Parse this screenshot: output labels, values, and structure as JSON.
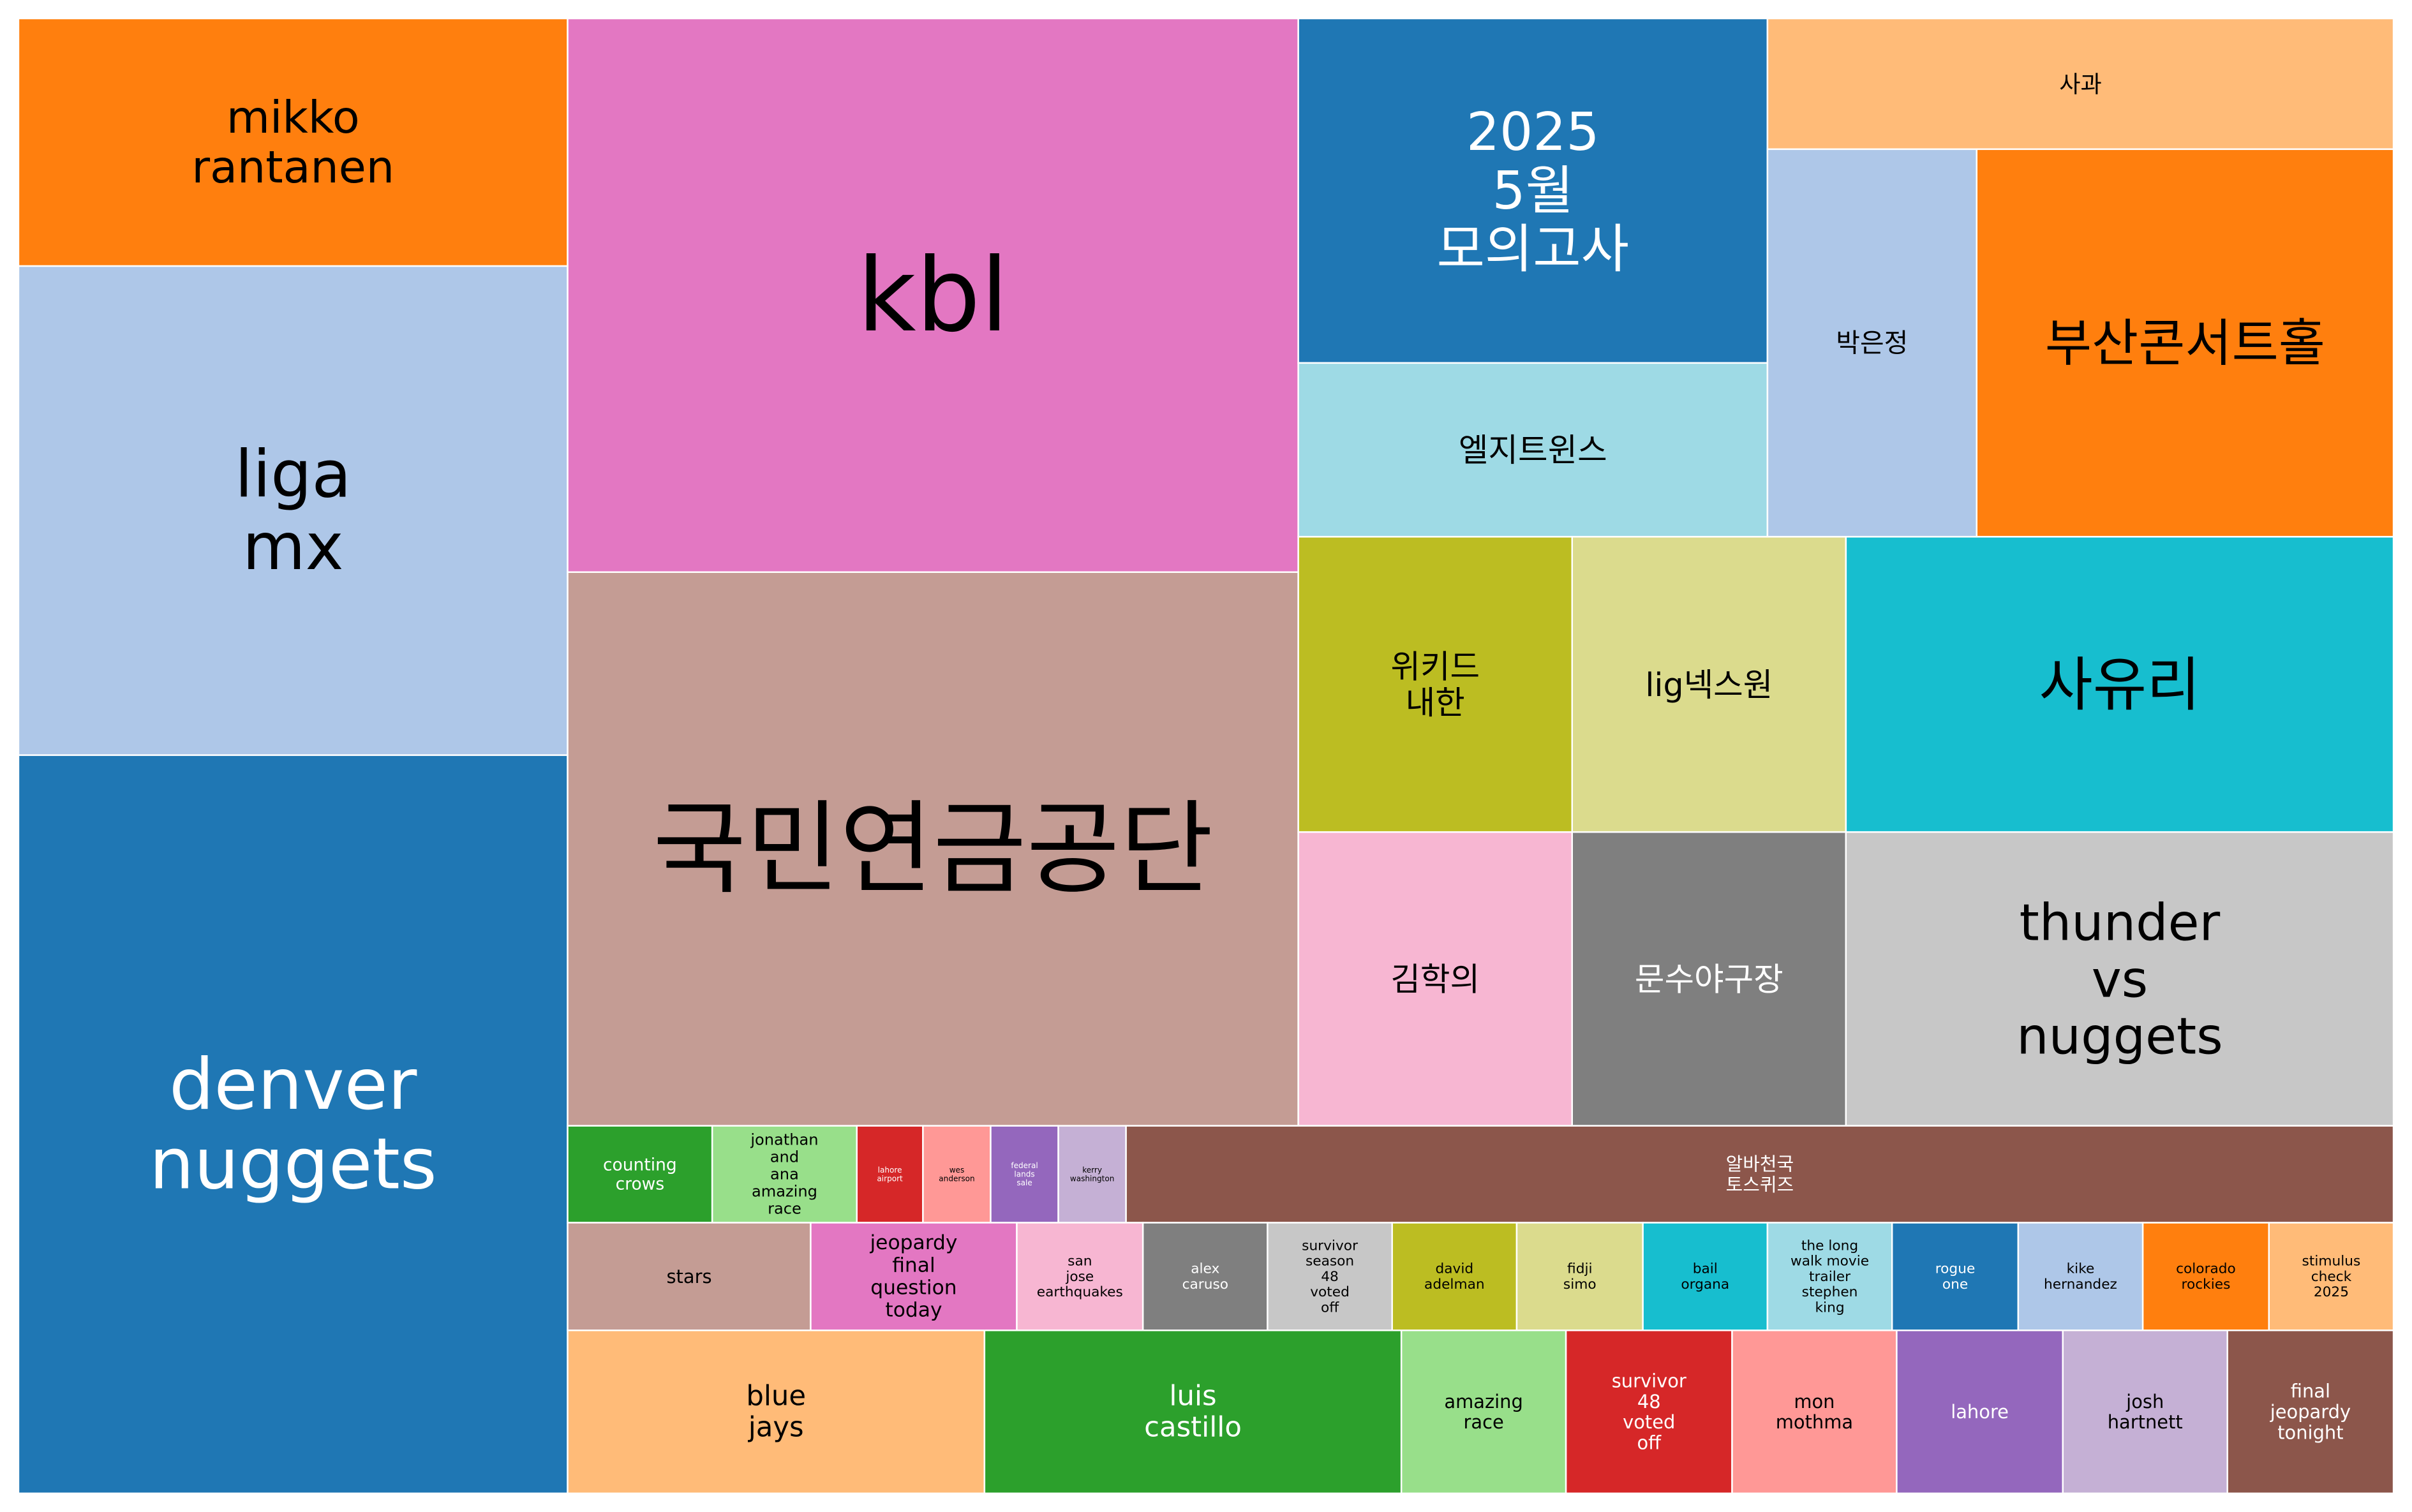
{
  "chart_data": {
    "type": "treemap",
    "title": "",
    "cells": [
      {
        "label": "mikko rantanen",
        "lines": [
          "mikko",
          "rantanen"
        ],
        "color": "#ff7f0e",
        "text_color": "#000000"
      },
      {
        "label": "liga mx",
        "lines": [
          "liga",
          "mx"
        ],
        "color": "#aec7e8",
        "text_color": "#000000"
      },
      {
        "label": "denver nuggets",
        "lines": [
          "denver",
          "nuggets"
        ],
        "color": "#1f77b4",
        "text_color": "#ffffff"
      },
      {
        "label": "kbl",
        "lines": [
          "kbl"
        ],
        "color": "#e377c2",
        "text_color": "#000000"
      },
      {
        "label": "국민연금공단",
        "lines": [
          "국민연금공단"
        ],
        "color": "#c49c94",
        "text_color": "#000000"
      },
      {
        "label": "2025 5월 모의고사",
        "lines": [
          "2025",
          "5월",
          "모의고사"
        ],
        "color": "#1f77b4",
        "text_color": "#ffffff"
      },
      {
        "label": "엘지트윈스",
        "lines": [
          "엘지트윈스"
        ],
        "color": "#9edae5",
        "text_color": "#000000"
      },
      {
        "label": "사과",
        "lines": [
          "사과"
        ],
        "color": "#ffbb78",
        "text_color": "#000000"
      },
      {
        "label": "박은정",
        "lines": [
          "박은정"
        ],
        "color": "#aec7e8",
        "text_color": "#000000"
      },
      {
        "label": "부산콘서트홀",
        "lines": [
          "부산콘서트홀"
        ],
        "color": "#ff7f0e",
        "text_color": "#000000"
      },
      {
        "label": "위키드 내한",
        "lines": [
          "위키드",
          "내한"
        ],
        "color": "#bcbd22",
        "text_color": "#000000"
      },
      {
        "label": "lig넥스원",
        "lines": [
          "lig넥스원"
        ],
        "color": "#dbdb8d",
        "text_color": "#000000"
      },
      {
        "label": "사유리",
        "lines": [
          "사유리"
        ],
        "color": "#17becf",
        "text_color": "#000000"
      },
      {
        "label": "김학의",
        "lines": [
          "김학의"
        ],
        "color": "#f7b6d2",
        "text_color": "#000000"
      },
      {
        "label": "문수야구장",
        "lines": [
          "문수야구장"
        ],
        "color": "#7f7f7f",
        "text_color": "#ffffff"
      },
      {
        "label": "thunder vs nuggets",
        "lines": [
          "thunder",
          "vs",
          "nuggets"
        ],
        "color": "#c7c7c7",
        "text_color": "#000000"
      },
      {
        "label": "counting crows",
        "lines": [
          "counting",
          "crows"
        ],
        "color": "#2ca02c",
        "text_color": "#ffffff"
      },
      {
        "label": "jonathan and ana amazing race",
        "lines": [
          "jonathan",
          "and",
          "ana",
          "amazing",
          "race"
        ],
        "color": "#98df8a",
        "text_color": "#000000"
      },
      {
        "label": "lahore airport",
        "lines": [
          "lahore",
          "airport"
        ],
        "color": "#d62728",
        "text_color": "#ffffff"
      },
      {
        "label": "wes anderson",
        "lines": [
          "wes",
          "anderson"
        ],
        "color": "#ff9896",
        "text_color": "#000000"
      },
      {
        "label": "federal lands sale",
        "lines": [
          "federal",
          "lands",
          "sale"
        ],
        "color": "#9467bd",
        "text_color": "#ffffff"
      },
      {
        "label": "kerry washington",
        "lines": [
          "kerry",
          "washington"
        ],
        "color": "#c5b0d5",
        "text_color": "#000000"
      },
      {
        "label": "알바천국 토스퀴즈",
        "lines": [
          "알바천국",
          "토스퀴즈"
        ],
        "color": "#8c564b",
        "text_color": "#ffffff"
      },
      {
        "label": "stars",
        "lines": [
          "stars"
        ],
        "color": "#c49c94",
        "text_color": "#000000"
      },
      {
        "label": "jeopardy final question today",
        "lines": [
          "jeopardy",
          "final",
          "question",
          "today"
        ],
        "color": "#e377c2",
        "text_color": "#000000"
      },
      {
        "label": "san jose earthquakes",
        "lines": [
          "san",
          "jose",
          "earthquakes"
        ],
        "color": "#f7b6d2",
        "text_color": "#000000"
      },
      {
        "label": "alex caruso",
        "lines": [
          "alex",
          "caruso"
        ],
        "color": "#7f7f7f",
        "text_color": "#ffffff"
      },
      {
        "label": "survivor season 48 voted off",
        "lines": [
          "survivor",
          "season",
          "48",
          "voted",
          "off"
        ],
        "color": "#c7c7c7",
        "text_color": "#000000"
      },
      {
        "label": "david adelman",
        "lines": [
          "david",
          "adelman"
        ],
        "color": "#bcbd22",
        "text_color": "#000000"
      },
      {
        "label": "fidji simo",
        "lines": [
          "fidji",
          "simo"
        ],
        "color": "#dbdb8d",
        "text_color": "#000000"
      },
      {
        "label": "bail organa",
        "lines": [
          "bail",
          "organa"
        ],
        "color": "#17becf",
        "text_color": "#000000"
      },
      {
        "label": "the long walk movie trailer stephen king",
        "lines": [
          "the long",
          "walk movie",
          "trailer",
          "stephen",
          "king"
        ],
        "color": "#9edae5",
        "text_color": "#000000"
      },
      {
        "label": "rogue one",
        "lines": [
          "rogue",
          "one"
        ],
        "color": "#1f77b4",
        "text_color": "#ffffff"
      },
      {
        "label": "kike hernandez",
        "lines": [
          "kike",
          "hernandez"
        ],
        "color": "#aec7e8",
        "text_color": "#000000"
      },
      {
        "label": "colorado rockies",
        "lines": [
          "colorado",
          "rockies"
        ],
        "color": "#ff7f0e",
        "text_color": "#000000"
      },
      {
        "label": "stimulus check 2025",
        "lines": [
          "stimulus",
          "check",
          "2025"
        ],
        "color": "#ffbb78",
        "text_color": "#000000"
      },
      {
        "label": "blue jays",
        "lines": [
          "blue",
          "jays"
        ],
        "color": "#ffbb78",
        "text_color": "#000000"
      },
      {
        "label": "luis castillo",
        "lines": [
          "luis",
          "castillo"
        ],
        "color": "#2ca02c",
        "text_color": "#ffffff"
      },
      {
        "label": "amazing race",
        "lines": [
          "amazing",
          "race"
        ],
        "color": "#98df8a",
        "text_color": "#000000"
      },
      {
        "label": "survivor 48 voted off",
        "lines": [
          "survivor",
          "48",
          "voted",
          "off"
        ],
        "color": "#d62728",
        "text_color": "#ffffff"
      },
      {
        "label": "mon mothma",
        "lines": [
          "mon",
          "mothma"
        ],
        "color": "#ff9896",
        "text_color": "#000000"
      },
      {
        "label": "lahore",
        "lines": [
          "lahore"
        ],
        "color": "#9467bd",
        "text_color": "#ffffff"
      },
      {
        "label": "josh hartnett",
        "lines": [
          "josh",
          "hartnett"
        ],
        "color": "#c5b0d5",
        "text_color": "#000000"
      },
      {
        "label": "final jeopardy tonight",
        "lines": [
          "final",
          "jeopardy",
          "tonight"
        ],
        "color": "#8c564b",
        "text_color": "#ffffff"
      }
    ]
  }
}
